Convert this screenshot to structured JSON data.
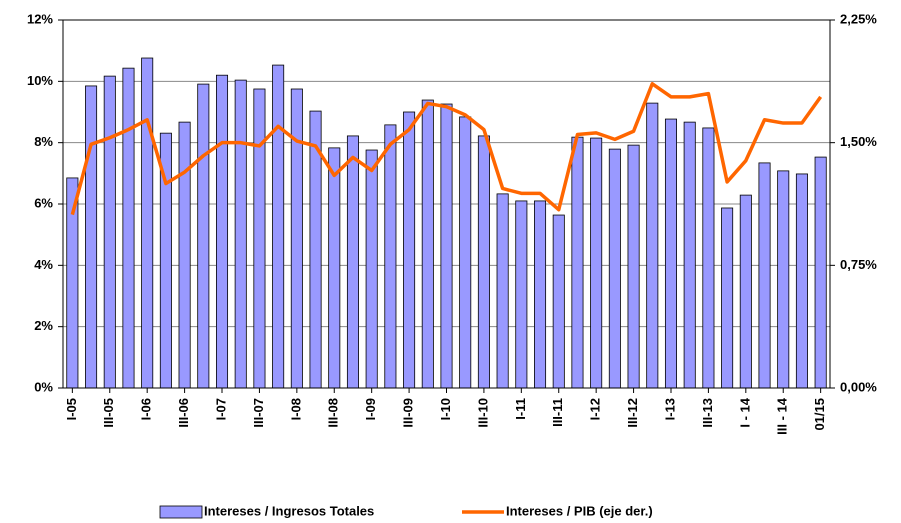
{
  "chart_data": {
    "type": "bar-line",
    "categories": [
      "I-05",
      null,
      "III-05",
      null,
      "I-06",
      null,
      "III-06",
      null,
      "I-07",
      null,
      "III-07",
      null,
      "I-08",
      null,
      "III-08",
      null,
      "I-09",
      null,
      "III-09",
      null,
      "I-10",
      null,
      "III-10",
      null,
      "I-11",
      null,
      "III-11",
      null,
      "I-12",
      null,
      "III-12",
      null,
      "I-13",
      null,
      "III-13",
      null,
      "I - 14",
      null,
      "III - 14",
      null,
      "01/15"
    ],
    "series": [
      {
        "name": "Intereses / Ingresos Totales",
        "type": "bar",
        "color": "#9999ff",
        "values": [
          6.85,
          9.85,
          10.17,
          10.43,
          10.76,
          8.31,
          8.67,
          9.91,
          10.2,
          10.04,
          9.75,
          10.53,
          9.75,
          9.03,
          7.83,
          8.22,
          7.76,
          8.58,
          9.0,
          9.39,
          9.26,
          8.84,
          8.22,
          6.33,
          6.1,
          6.1,
          5.64,
          8.18,
          8.15,
          7.79,
          7.92,
          9.29,
          8.77,
          8.67,
          8.48,
          5.87,
          6.29,
          7.34,
          7.08,
          6.98,
          7.53
        ]
      },
      {
        "name": "Intereses / PIB (eje der.)",
        "type": "line",
        "axis": "y2",
        "color": "#ff6600",
        "values": [
          1.06,
          1.49,
          1.53,
          1.58,
          1.64,
          1.25,
          1.32,
          1.42,
          1.5,
          1.5,
          1.48,
          1.6,
          1.51,
          1.48,
          1.3,
          1.41,
          1.33,
          1.49,
          1.58,
          1.74,
          1.72,
          1.67,
          1.58,
          1.22,
          1.19,
          1.19,
          1.09,
          1.55,
          1.56,
          1.52,
          1.57,
          1.86,
          1.78,
          1.78,
          1.8,
          1.26,
          1.39,
          1.64,
          1.62,
          1.62,
          1.78
        ]
      }
    ],
    "ylim": [
      0,
      12
    ],
    "yticks": [
      {
        "value": 0,
        "label": "0%"
      },
      {
        "value": 2,
        "label": "2%"
      },
      {
        "value": 4,
        "label": "4%"
      },
      {
        "value": 6,
        "label": "6%"
      },
      {
        "value": 8,
        "label": "8%"
      },
      {
        "value": 10,
        "label": "10%"
      },
      {
        "value": 12,
        "label": "12%"
      }
    ],
    "y2lim": [
      0,
      2.25
    ],
    "y2ticks": [
      {
        "value": 0,
        "label": "0,00%"
      },
      {
        "value": 0.75,
        "label": "0,75%"
      },
      {
        "value": 1.5,
        "label": "1,50%"
      },
      {
        "value": 2.25,
        "label": "2,25%"
      }
    ],
    "grid": true,
    "legend": "bottom"
  }
}
